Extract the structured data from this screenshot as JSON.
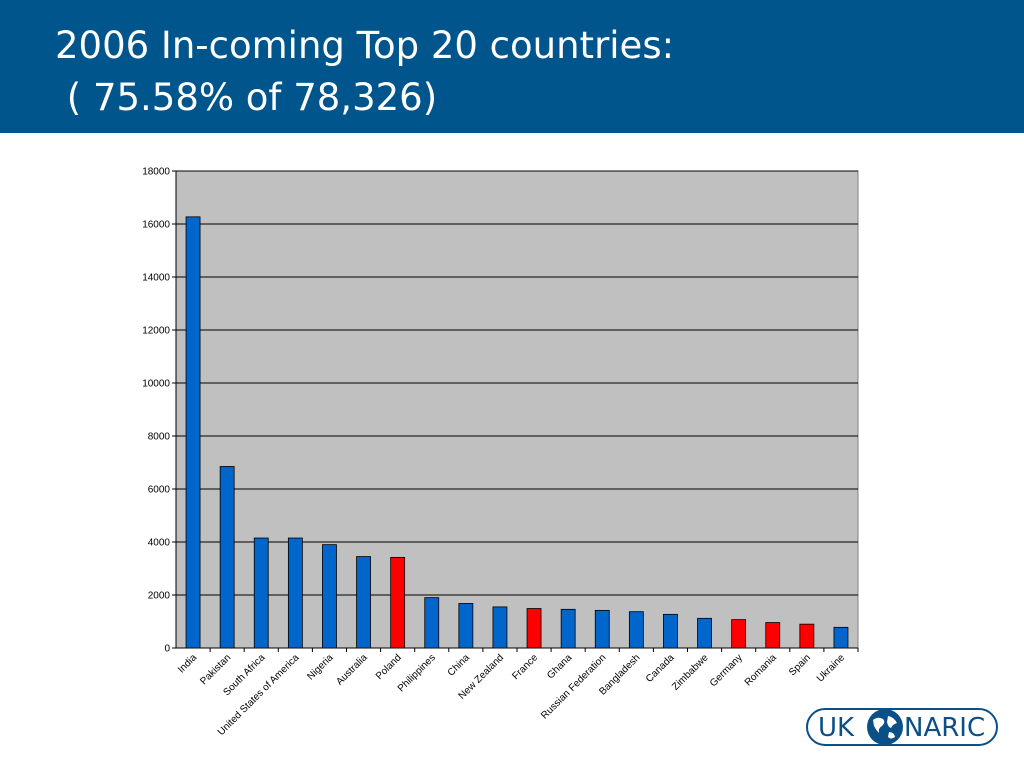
{
  "slide": {
    "title_line1": "2006 In-coming Top 20 countries:",
    "title_line2": " ( 75.58% of 78,326)"
  },
  "logo": {
    "left_text": "UK",
    "right_text": "NARIC",
    "icon": "globe-icon"
  },
  "colors": {
    "header_bg": "#00558c",
    "plot_bg": "#c0c0c0",
    "bar_blue": "#0066cc",
    "bar_red": "#ff0000",
    "logo": "#0a4f86"
  },
  "chart_data": {
    "type": "bar",
    "title": "",
    "xlabel": "",
    "ylabel": "",
    "ylim": [
      0,
      18000
    ],
    "yticks": [
      0,
      2000,
      4000,
      6000,
      8000,
      10000,
      12000,
      14000,
      16000,
      18000
    ],
    "grid": true,
    "categories": [
      "India",
      "Pakistan",
      "South Africa",
      "United States of America",
      "Nigeria",
      "Australia",
      "Poland",
      "Philippines",
      "China",
      "New Zealand",
      "France",
      "Ghana",
      "Russian Federation",
      "Bangladesh",
      "Canada",
      "Zimbabwe",
      "Germany",
      "Romania",
      "Spain",
      "Ukraine"
    ],
    "values": [
      16270,
      6850,
      4150,
      4150,
      3900,
      3450,
      3420,
      1900,
      1680,
      1550,
      1490,
      1460,
      1420,
      1370,
      1270,
      1120,
      1070,
      960,
      900,
      780
    ],
    "bar_colors": [
      "blue",
      "blue",
      "blue",
      "blue",
      "blue",
      "blue",
      "red",
      "blue",
      "blue",
      "blue",
      "red",
      "blue",
      "blue",
      "blue",
      "blue",
      "blue",
      "red",
      "red",
      "red",
      "blue"
    ]
  }
}
